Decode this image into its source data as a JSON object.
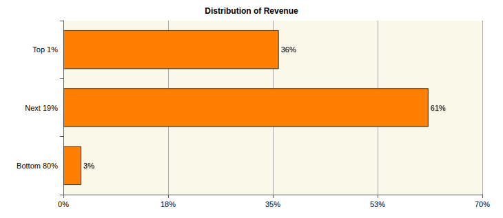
{
  "chart_data": {
    "type": "bar",
    "title": "Distribution of Revenue",
    "orientation": "horizontal",
    "categories": [
      "Top 1%",
      "Next 19%",
      "Bottom 80%"
    ],
    "values": [
      36,
      61,
      3
    ],
    "value_labels": [
      "36%",
      "61%",
      "3%"
    ],
    "data_labels": true,
    "color": "#ff8000",
    "xlim": [
      0,
      70
    ],
    "xticks": [
      {
        "value": 0,
        "label": "0%"
      },
      {
        "value": 17.5,
        "label": "18%"
      },
      {
        "value": 35,
        "label": "35%"
      },
      {
        "value": 52.5,
        "label": "53%"
      },
      {
        "value": 70,
        "label": "70%"
      }
    ],
    "grid": true
  }
}
